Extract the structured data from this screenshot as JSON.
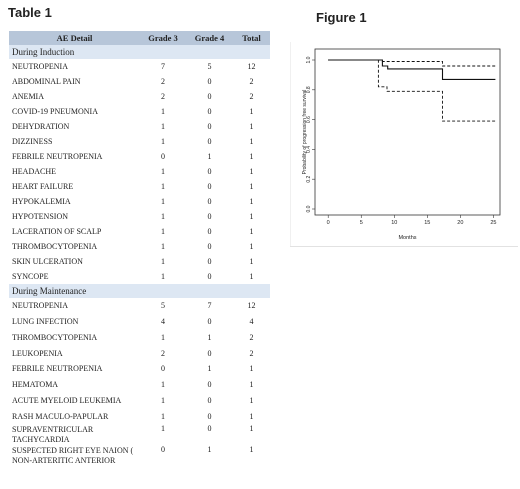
{
  "table": {
    "title": "Table 1",
    "headers": [
      "AE Detail",
      "Grade 3",
      "Grade 4",
      "Total"
    ],
    "sections": [
      {
        "label": "During Induction",
        "rows": [
          [
            "NEUTROPENIA",
            "7",
            "5",
            "12"
          ],
          [
            "ABDOMINAL PAIN",
            "2",
            "0",
            "2"
          ],
          [
            "ANEMIA",
            "2",
            "0",
            "2"
          ],
          [
            "COVID-19 PNEUMONIA",
            "1",
            "0",
            "1"
          ],
          [
            "DEHYDRATION",
            "1",
            "0",
            "1"
          ],
          [
            "DIZZINESS",
            "1",
            "0",
            "1"
          ],
          [
            "FEBRILE NEUTROPENIA",
            "0",
            "1",
            "1"
          ],
          [
            "HEADACHE",
            "1",
            "0",
            "1"
          ],
          [
            "HEART FAILURE",
            "1",
            "0",
            "1"
          ],
          [
            "HYPOKALEMIA",
            "1",
            "0",
            "1"
          ],
          [
            "HYPOTENSION",
            "1",
            "0",
            "1"
          ],
          [
            "LACERATION OF SCALP",
            "1",
            "0",
            "1"
          ],
          [
            "THROMBOCYTOPENIA",
            "1",
            "0",
            "1"
          ],
          [
            "SKIN ULCERATION",
            "1",
            "0",
            "1"
          ],
          [
            "SYNCOPE",
            "1",
            "0",
            "1"
          ]
        ]
      },
      {
        "label": "During Maintenance",
        "rows": [
          [
            "NEUTROPENIA",
            "5",
            "7",
            "12"
          ],
          [
            "LUNG INFECTION",
            "4",
            "0",
            "4"
          ],
          [
            "THROMBOCYTOPENIA",
            "1",
            "1",
            "2"
          ],
          [
            "LEUKOPENIA",
            "2",
            "0",
            "2"
          ],
          [
            "FEBRILE NEUTROPENIA",
            "0",
            "1",
            "1"
          ],
          [
            "HEMATOMA",
            "1",
            "0",
            "1"
          ],
          [
            "ACUTE MYELOID LEUKEMIA",
            "1",
            "0",
            "1"
          ],
          [
            "RASH MACULO-PAPULAR",
            "1",
            "0",
            "1"
          ],
          [
            "SUPRAVENTRICULAR TACHYCARDIA",
            "1",
            "0",
            "1"
          ],
          [
            "SUSPECTED RIGHT EYE NAION ( NON-ARTERITIC ANTERIOR",
            "0",
            "1",
            "1"
          ]
        ]
      }
    ]
  },
  "chart_data": {
    "title": "Figure 1",
    "type": "line",
    "xlabel": "Months",
    "ylabel": "Probability of progression free survival",
    "xlim": [
      -2,
      26
    ],
    "ylim": [
      0,
      1
    ],
    "xticks": [
      "0",
      "5",
      "10",
      "15",
      "20",
      "25"
    ],
    "yticks": [
      "0.0",
      "0.2",
      "0.4",
      "0.6",
      "0.8",
      "1.0"
    ],
    "series": [
      {
        "style": "solid",
        "points": [
          [
            0,
            1.0
          ],
          [
            8.2,
            1.0
          ],
          [
            8.2,
            0.96
          ],
          [
            9.0,
            0.96
          ],
          [
            9.0,
            0.94
          ],
          [
            17.3,
            0.94
          ],
          [
            17.3,
            0.87
          ],
          [
            25.3,
            0.87
          ]
        ]
      },
      {
        "style": "dashed",
        "points": [
          [
            0,
            1.0
          ],
          [
            8.2,
            1.0
          ],
          [
            8.2,
            0.99
          ],
          [
            17.3,
            0.99
          ],
          [
            17.3,
            0.96
          ],
          [
            25.3,
            0.96
          ]
        ]
      },
      {
        "style": "dashed",
        "points": [
          [
            0,
            1.0
          ],
          [
            7.6,
            1.0
          ],
          [
            7.6,
            0.82
          ],
          [
            8.9,
            0.82
          ],
          [
            8.9,
            0.79
          ],
          [
            17.3,
            0.79
          ],
          [
            17.3,
            0.59
          ],
          [
            25.3,
            0.59
          ]
        ]
      }
    ],
    "grid": false
  }
}
